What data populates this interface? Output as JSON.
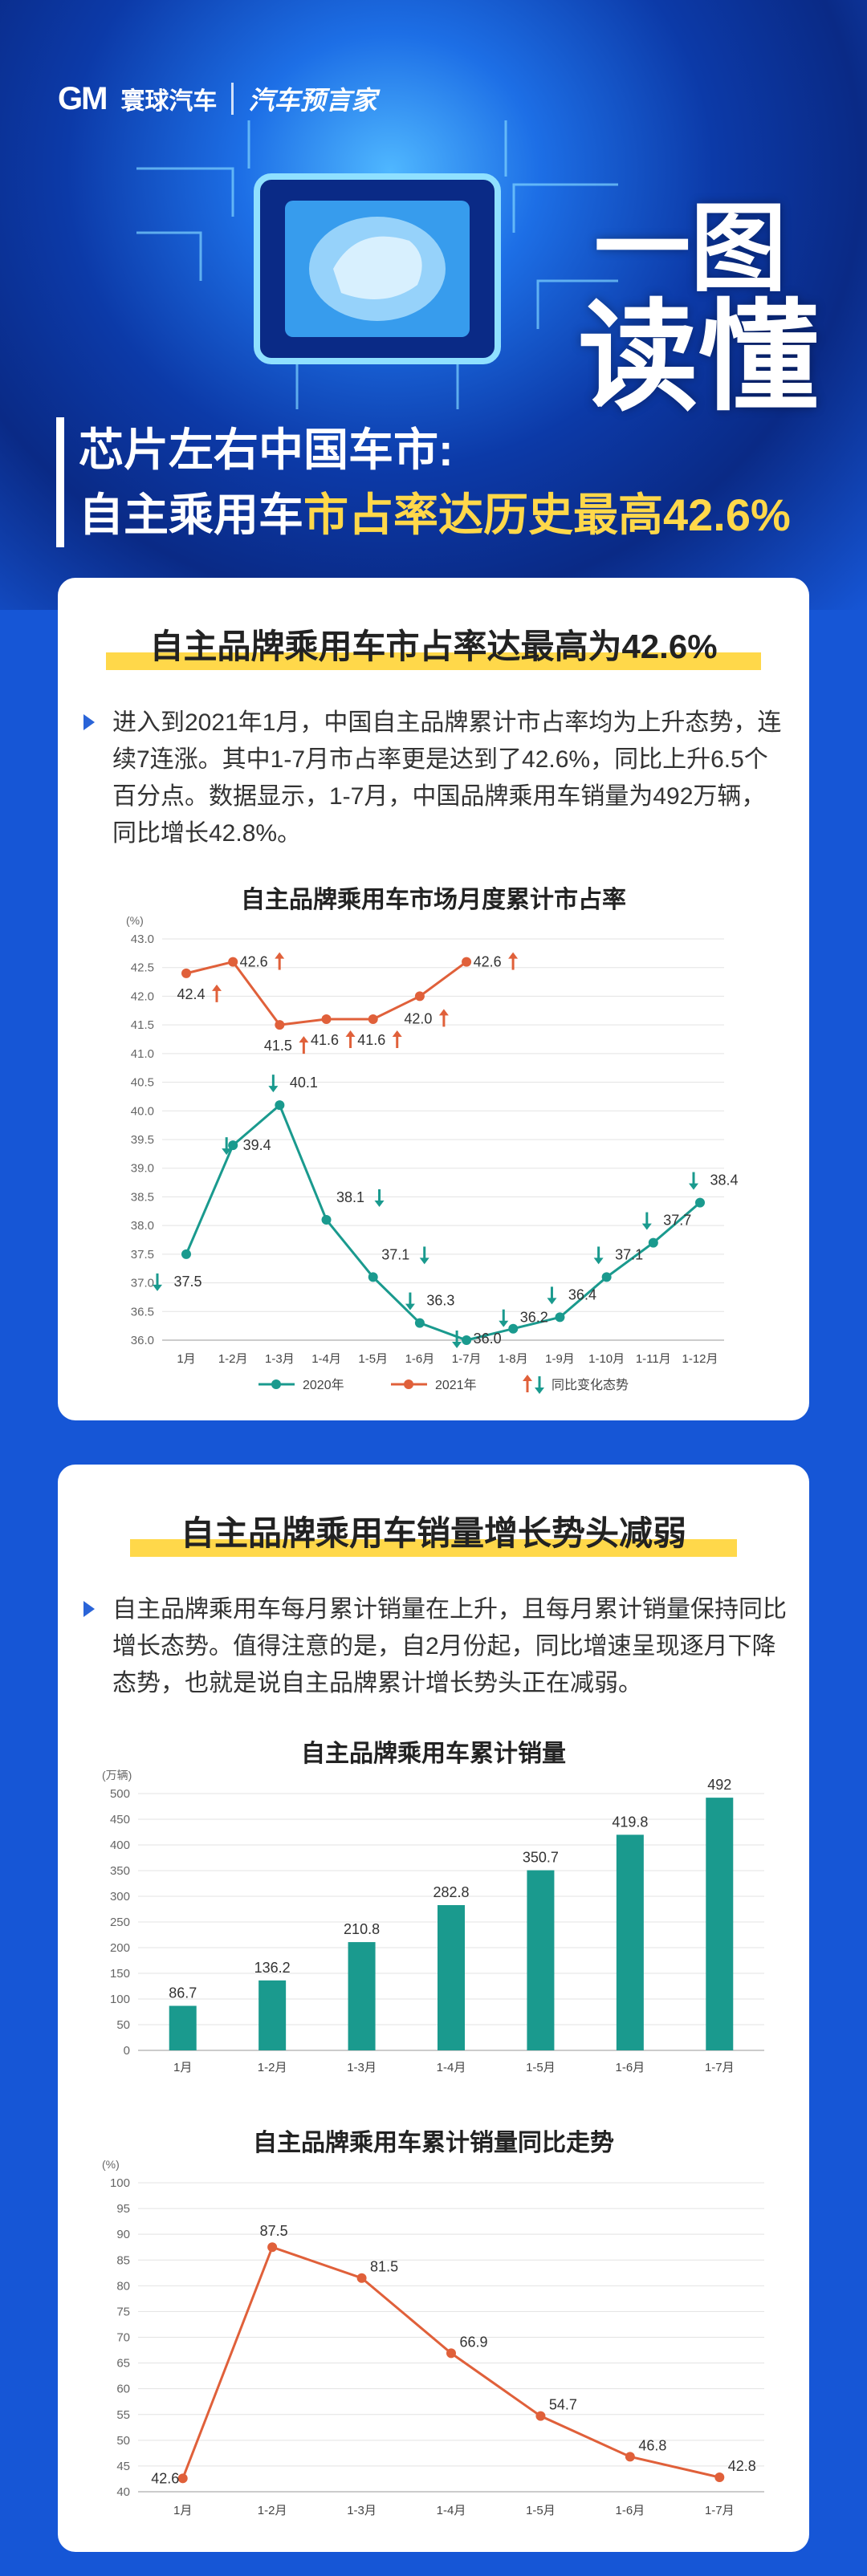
{
  "brand": {
    "logo_mark": "GM",
    "logo_name": "寰球汽车",
    "partner": "汽车预言家"
  },
  "hero": {
    "calligraphy_line1": "一图",
    "calligraphy_line2": "读懂",
    "title_line1": "芯片左右中国车市:",
    "title_line2_a": "自主乘用车",
    "title_line2_b": "市占率达历史最高42.6%"
  },
  "section1": {
    "title": "自主品牌乘用车市占率达最高为42.6%",
    "paragraph": "进入到2021年1月，中国自主品牌累计市占率均为上升态势，连续7连涨。其中1-7月市占率更是达到了42.6%，同比上升6.5个百分点。数据显示，1-7月，中国品牌乘用车销量为492万辆，同比增长42.8%。"
  },
  "section2": {
    "title": "自主品牌乘用车销量增长势头减弱",
    "paragraph": "自主品牌乘用车每月累计销量在上升，且每月累计销量保持同比增长态势。值得注意的是，自2月份起，同比增速呈现逐月下降态势，也就是说自主品牌累计增长势头正在减弱。"
  },
  "chart_data": [
    {
      "type": "line",
      "title": "自主品牌乘用车市场月度累计市占率",
      "ylabel": "(%)",
      "categories": [
        "1月",
        "1-2月",
        "1-3月",
        "1-4月",
        "1-5月",
        "1-6月",
        "1-7月",
        "1-8月",
        "1-9月",
        "1-10月",
        "1-11月",
        "1-12月"
      ],
      "ylim": [
        36.0,
        43.0
      ],
      "yticks": [
        36.0,
        36.5,
        37.0,
        37.5,
        38.0,
        38.5,
        39.0,
        39.5,
        40.0,
        40.5,
        41.0,
        41.5,
        42.0,
        42.5,
        43.0
      ],
      "series": [
        {
          "name": "2020年",
          "color": "#1a9a8e",
          "values": [
            37.5,
            39.4,
            40.1,
            38.1,
            37.1,
            36.3,
            36.0,
            36.2,
            36.4,
            37.1,
            37.7,
            38.4
          ],
          "trend": [
            "down",
            "down",
            "down",
            "down",
            "down",
            "down",
            "down",
            "down",
            "down",
            "down",
            "down",
            "down"
          ]
        },
        {
          "name": "2021年",
          "color": "#e0603a",
          "values": [
            42.4,
            42.6,
            41.5,
            41.6,
            41.6,
            42.0,
            42.6,
            null,
            null,
            null,
            null,
            null
          ],
          "trend": [
            "up",
            "up",
            "up",
            "up",
            "up",
            "up",
            "up",
            null,
            null,
            null,
            null,
            null
          ]
        }
      ],
      "legend": {
        "position": "bottom",
        "trend_label": "同比变化态势"
      },
      "grid": true
    },
    {
      "type": "bar",
      "title": "自主品牌乘用车累计销量",
      "ylabel": "(万辆)",
      "categories": [
        "1月",
        "1-2月",
        "1-3月",
        "1-4月",
        "1-5月",
        "1-6月",
        "1-7月"
      ],
      "values": [
        86.7,
        136.2,
        210.8,
        282.8,
        350.7,
        419.8,
        492
      ],
      "value_labels": [
        "86.7",
        "136.2",
        "210.8",
        "282.8",
        "350.7",
        "419.8",
        "492"
      ],
      "ylim": [
        0,
        500
      ],
      "yticks": [
        0,
        50,
        100,
        150,
        200,
        250,
        300,
        350,
        400,
        450,
        500
      ],
      "color": "#1a9a8e",
      "grid": true
    },
    {
      "type": "line",
      "title": "自主品牌乘用车累计销量同比走势",
      "ylabel": "(%)",
      "categories": [
        "1月",
        "1-2月",
        "1-3月",
        "1-4月",
        "1-5月",
        "1-6月",
        "1-7月"
      ],
      "values": [
        42.6,
        87.5,
        81.5,
        66.9,
        54.7,
        46.8,
        42.8
      ],
      "value_labels": [
        "42.6",
        "87.5",
        "81.5",
        "66.9",
        "54.7",
        "46.8",
        "42.8"
      ],
      "ylim": [
        40,
        100
      ],
      "yticks": [
        40,
        45,
        50,
        55,
        60,
        65,
        70,
        75,
        80,
        85,
        90,
        95,
        100
      ],
      "color": "#e0603a",
      "grid": true
    }
  ]
}
